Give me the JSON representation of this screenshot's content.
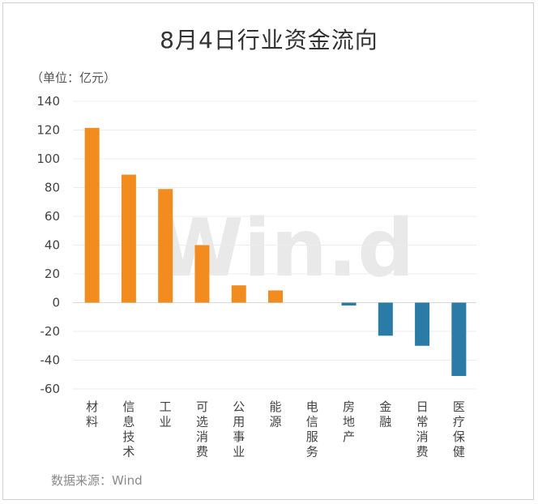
{
  "watermark": "Win.d",
  "chart_data": {
    "type": "bar",
    "title": "8月4日行业资金流向",
    "unit_label": "（单位：亿元）",
    "source": "数据来源：Wind",
    "categories": [
      "材料",
      "信息技术",
      "工业",
      "可选消费",
      "公用事业",
      "能源",
      "电信服务",
      "房地产",
      "金融",
      "日常消费",
      "医疗保健"
    ],
    "values": [
      121.5,
      89,
      79,
      40,
      12,
      8.5,
      0,
      -2,
      -23,
      -30,
      -51
    ],
    "ylim": [
      -60,
      140
    ],
    "yticks": [
      140,
      120,
      100,
      80,
      60,
      40,
      20,
      0,
      -20,
      -40,
      -60
    ],
    "grid": true,
    "colors": {
      "positive": "#f28c1e",
      "negative": "#2a7ba6"
    }
  }
}
